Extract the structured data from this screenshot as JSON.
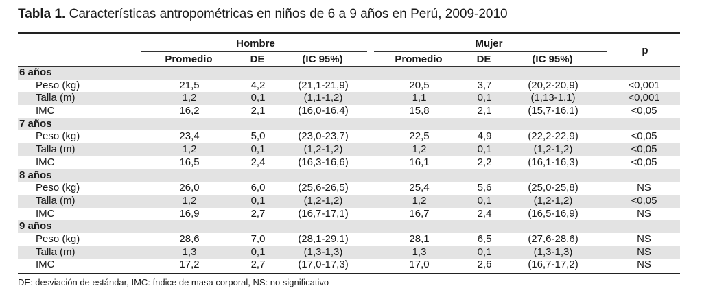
{
  "title": {
    "bold": "Tabla 1.",
    "text": " Características antropométricas en niños de 6 a 9 años en Perú, 2009-2010"
  },
  "header": {
    "hombre": "Hombre",
    "mujer": "Mujer",
    "p": "p",
    "cols": [
      "Promedio",
      "DE",
      "(IC 95%)",
      "Promedio",
      "DE",
      "(IC 95%)"
    ]
  },
  "groups": [
    {
      "label": "6 años",
      "rows": [
        {
          "label": "Peso (kg)",
          "values": [
            "21,5",
            "4,2",
            "(21,1-21,9)",
            "20,5",
            "3,7",
            "(20,2-20,9)",
            "<0,001"
          ]
        },
        {
          "label": "Talla (m)",
          "values": [
            "1,2",
            "0,1",
            "(1,1-1,2)",
            "1,1",
            "0,1",
            "(1,13-1,1)",
            "<0,001"
          ]
        },
        {
          "label": "IMC",
          "values": [
            "16,2",
            "2,1",
            "(16,0-16,4)",
            "15,8",
            "2,1",
            "(15,7-16,1)",
            "<0,05"
          ]
        }
      ]
    },
    {
      "label": "7 años",
      "rows": [
        {
          "label": "Peso (kg)",
          "values": [
            "23,4",
            "5,0",
            "(23,0-23,7)",
            "22,5",
            "4,9",
            "(22,2-22,9)",
            "<0,05"
          ]
        },
        {
          "label": "Talla (m)",
          "values": [
            "1,2",
            "0,1",
            "(1,2-1,2)",
            "1,2",
            "0,1",
            "(1,2-1,2)",
            "<0,05"
          ]
        },
        {
          "label": "IMC",
          "values": [
            "16,5",
            "2,4",
            "(16,3-16,6)",
            "16,1",
            "2,2",
            "(16,1-16,3)",
            "<0,05"
          ]
        }
      ]
    },
    {
      "label": "8 años",
      "rows": [
        {
          "label": "Peso (kg)",
          "values": [
            "26,0",
            "6,0",
            "(25,6-26,5)",
            "25,4",
            "5,6",
            "(25,0-25,8)",
            "NS"
          ]
        },
        {
          "label": "Talla (m)",
          "values": [
            "1,2",
            "0,1",
            "(1,2-1,2)",
            "1,2",
            "0,1",
            "(1,2-1,2)",
            "<0,05"
          ]
        },
        {
          "label": "IMC",
          "values": [
            "16,9",
            "2,7",
            "(16,7-17,1)",
            "16,7",
            "2,4",
            "(16,5-16,9)",
            "NS"
          ]
        }
      ]
    },
    {
      "label": "9 años",
      "rows": [
        {
          "label": "Peso (kg)",
          "values": [
            "28,6",
            "7,0",
            "(28,1-29,1)",
            "28,1",
            "6,5",
            "(27,6-28,6)",
            "NS"
          ]
        },
        {
          "label": "Talla (m)",
          "values": [
            "1,3",
            "0,1",
            "(1,3-1,3)",
            "1,3",
            "0,1",
            "(1,3-1,3)",
            "NS"
          ]
        },
        {
          "label": "IMC",
          "values": [
            "17,2",
            "2,7",
            "(17,0-17,3)",
            "17,0",
            "2,6",
            "(16,7-17,2)",
            "NS"
          ]
        }
      ]
    }
  ],
  "footnote": "DE: desviación de estándar, IMC: índice de masa corporal, NS: no significativo"
}
